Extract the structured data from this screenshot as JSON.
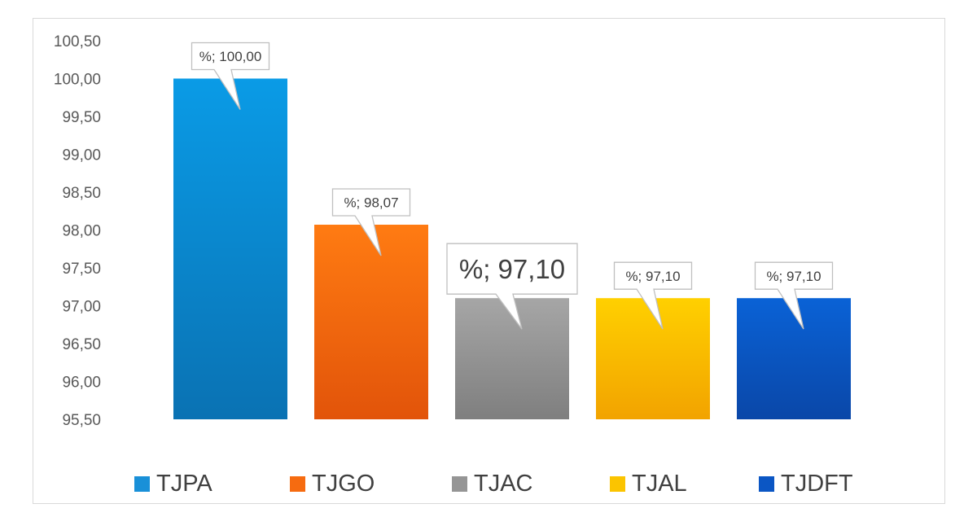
{
  "chart_data": {
    "type": "bar",
    "categories": [
      "TJPA",
      "TJGO",
      "TJAC",
      "TJAL",
      "TJDFT"
    ],
    "values": [
      100.0,
      98.07,
      97.1,
      97.1,
      97.1
    ],
    "data_labels": [
      "%; 100,00",
      "%; 98,07",
      "%; 97,10",
      "%; 97,10",
      "%; 97,10"
    ],
    "y_ticks": [
      "95,50",
      "96,00",
      "96,50",
      "97,00",
      "97,50",
      "98,00",
      "98,50",
      "99,00",
      "99,50",
      "100,00",
      "100,50"
    ],
    "ylim": [
      95.5,
      100.5
    ],
    "grid": false,
    "legend_position": "bottom",
    "colors": {
      "TJPA": [
        "#0a9be6",
        "#0a72b3"
      ],
      "TJGO": [
        "#ff7b12",
        "#e2540a"
      ],
      "TJAC": [
        "#a6a6a6",
        "#7f7f7f"
      ],
      "TJAL": [
        "#ffd000",
        "#f2a300"
      ],
      "TJDFT": [
        "#0a62d6",
        "#0a47a8"
      ]
    },
    "emphasized_label_index": 2
  },
  "legend": [
    {
      "label": "TJPA",
      "color": "#1990d8"
    },
    {
      "label": "TJGO",
      "color": "#f66b10"
    },
    {
      "label": "TJAC",
      "color": "#959595"
    },
    {
      "label": "TJAL",
      "color": "#fbc400"
    },
    {
      "label": "TJDFT",
      "color": "#0b56c4"
    }
  ]
}
